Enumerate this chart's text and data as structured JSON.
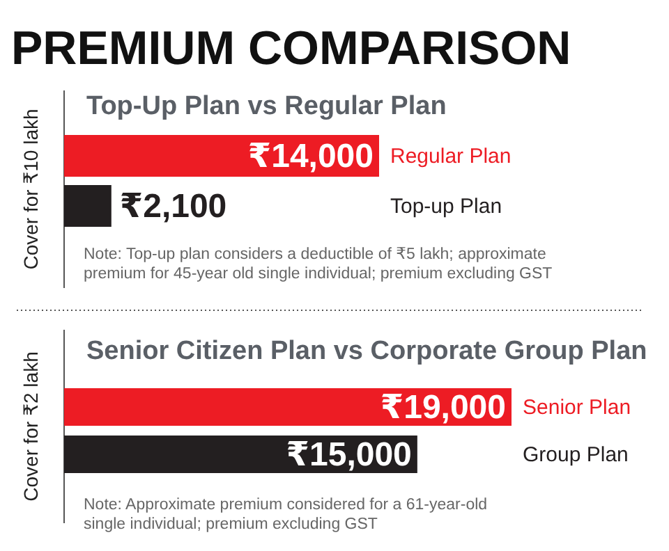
{
  "chart_data": [
    {
      "type": "bar",
      "orientation": "horizontal",
      "title": "PREMIUM COMPARISON",
      "subtitle": "Top-Up Plan vs Regular Plan",
      "ylabel": "Cover for ₹10 lakh",
      "categories": [
        "Regular Plan",
        "Top-up Plan"
      ],
      "values": [
        14000,
        2100
      ],
      "colors": [
        "#ed1c24",
        "#231f20"
      ],
      "value_labels": [
        "₹14,000",
        "₹2,100"
      ],
      "annotations": [
        "Note: Top-up plan considers a deductible of ₹5 lakh; approximate premium for 45-year old single individual; premium excluding GST"
      ]
    },
    {
      "type": "bar",
      "orientation": "horizontal",
      "title": "Senior Citizen Plan vs Corporate Group Plan",
      "ylabel": "Cover for ₹2 lakh",
      "categories": [
        "Senior Plan",
        "Group Plan"
      ],
      "values": [
        19000,
        15000
      ],
      "colors": [
        "#ed1c24",
        "#231f20"
      ],
      "value_labels": [
        "₹19,000",
        "₹15,000"
      ],
      "annotations": [
        "Note: Approximate premium considered for a 61-year-old single individual; premium excluding GST"
      ]
    }
  ]
}
